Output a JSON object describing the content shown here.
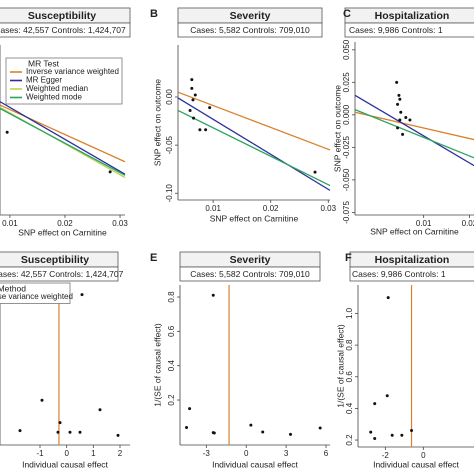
{
  "chart_data": [
    {
      "type": "scatter",
      "title": "Susceptibility",
      "subtitle": "Cases: 42,557 Controls: 1,424,707",
      "xlabel": "SNP effect on Carnitine",
      "xlim": [
        0.0082,
        0.0309
      ],
      "ylim": [
        -0.1,
        0.05
      ],
      "xticks": [
        0.01,
        0.02,
        0.03
      ],
      "points": {
        "x": [
          0.0095,
          0.0282
        ],
        "y": [
          -0.027,
          -0.062
        ]
      },
      "legend_title": "MR Test",
      "lines": [
        {
          "name": "Inverse variance weighted",
          "color": "#d9822b",
          "x": [
            0.0082,
            0.0309
          ],
          "y": [
            -0.003,
            -0.053
          ]
        },
        {
          "name": "MR Egger",
          "color": "#2b2f9c",
          "x": [
            0.0082,
            0.0309
          ],
          "y": [
            0.0,
            -0.064
          ]
        },
        {
          "name": "Weighted median",
          "color": "#b8d44a",
          "x": [
            0.0082,
            0.0309
          ],
          "y": [
            -0.005,
            -0.067
          ]
        },
        {
          "name": "Weighted mode",
          "color": "#2ca25f",
          "x": [
            0.0082,
            0.0309
          ],
          "y": [
            -0.006,
            -0.065
          ]
        }
      ]
    },
    {
      "type": "scatter",
      "panel": "B",
      "title": "Severity",
      "subtitle": "Cases: 5,582 Controls: 709,010",
      "xlabel": "SNP effect on Carnitine",
      "ylabel": "SNP effect on outcome",
      "xlim": [
        0.0039,
        0.0303
      ],
      "ylim": [
        -0.107,
        0.054
      ],
      "xticks": [
        0.01,
        0.02,
        0.03
      ],
      "yticks": [
        {
          "value": 0,
          "label": "0.00"
        },
        -0.05,
        {
          "value": -0.1,
          "label": "-0.10"
        }
      ],
      "points": {
        "x": [
          0.0063,
          0.0063,
          0.0065,
          0.006,
          0.0066,
          0.0069,
          0.0094,
          0.0087,
          0.0077,
          0.0277
        ],
        "y": [
          0.018,
          0.009,
          -0.003,
          -0.014,
          -0.022,
          0.002,
          -0.011,
          -0.034,
          -0.034,
          -0.078
        ]
      },
      "lines": [
        {
          "color": "#d9822b",
          "x": [
            0.0039,
            0.0303
          ],
          "y": [
            0.005,
            -0.055
          ]
        },
        {
          "color": "#2b2f9c",
          "x": [
            0.0039,
            0.0303
          ],
          "y": [
            -0.001,
            -0.097
          ]
        },
        {
          "color": "#2ca25f",
          "x": [
            0.0039,
            0.0303
          ],
          "y": [
            -0.014,
            -0.092
          ]
        }
      ]
    },
    {
      "type": "scatter",
      "panel": "C",
      "title": "Hospitalization",
      "subtitle": "Cases: 9,986 Controls: 1",
      "xlabel": "SNP effect on Carnitine",
      "ylabel": "SNP effect on outcome",
      "xlim": [
        -0.005,
        0.021
      ],
      "ylim": [
        -0.077,
        0.056
      ],
      "xticks": [
        0.01,
        0.02
      ],
      "yticks": [
        {
          "value": 0.05,
          "label": "0.050"
        },
        0.025,
        {
          "value": 0,
          "label": "0.000"
        },
        -0.025,
        {
          "value": -0.05,
          "label": "-0.050"
        },
        -0.075
      ],
      "points": {
        "x": [
          0.0041,
          0.0046,
          0.0043,
          0.005,
          0.0048,
          0.0043,
          0.0054,
          0.0048,
          0.007,
          0.0061
        ],
        "y": [
          0.025,
          0.015,
          0.008,
          0.002,
          -0.004,
          -0.01,
          -0.015,
          0.012,
          -0.004,
          -0.002
        ]
      },
      "lines": [
        {
          "color": "#d9822b",
          "x": [
            -0.005,
            0.021
          ],
          "y": [
            0.002,
            -0.019
          ]
        },
        {
          "color": "#2b2f9c",
          "x": [
            -0.005,
            0.021
          ],
          "y": [
            0.015,
            -0.039
          ]
        },
        {
          "color": "#2ca25f",
          "x": [
            -0.005,
            0.021
          ],
          "y": [
            0.004,
            -0.033
          ]
        }
      ]
    },
    {
      "type": "funnel",
      "title": "Susceptibility",
      "subtitle": "Cases: 42,557 Controls: 1,424,707",
      "xlabel": "Individual causal effect",
      "xlim": [
        -2.5,
        2.375
      ],
      "ylim": [
        0,
        1
      ],
      "xticks": [
        -1,
        0,
        1,
        2
      ],
      "points": {
        "x": [
          0.575,
          -0.925,
          -1.75,
          -0.25,
          -0.325,
          0.125,
          0.5,
          1.25,
          1.925
        ],
        "y": [
          0.94,
          0.28,
          0.09,
          0.14,
          0.08,
          0.08,
          0.08,
          0.22,
          0.06
        ]
      },
      "legend_title": "MR Method",
      "estimate": {
        "name": "Inverse variance weighted",
        "color": "#d9822b",
        "value": -0.29
      }
    },
    {
      "type": "funnel",
      "panel": "E",
      "title": "Severity",
      "subtitle": "Cases: 5,582 Controls: 709,010",
      "xlabel": "Individual causal effect",
      "ylabel": "1/(SE of causal effect)",
      "xlim": [
        -4.98,
        6.3
      ],
      "ylim": [
        -0.062,
        0.87
      ],
      "xticks": [
        -3,
        0,
        3,
        6
      ],
      "yticks": [
        0.2,
        0.4,
        0.6,
        0.8
      ],
      "points": {
        "x": [
          -2.48,
          -4.26,
          -4.49,
          -2.48,
          -2.4,
          0.35,
          1.24,
          3.33,
          5.56
        ],
        "y": [
          0.81,
          0.15,
          0.04,
          0.01,
          0.008,
          0.054,
          0.014,
          0,
          0.037
        ]
      },
      "estimate": {
        "color": "#d9822b",
        "value": -1.29
      }
    },
    {
      "type": "funnel",
      "panel": "F",
      "title": "Hospitalization",
      "subtitle": "Cases: 9,986 Controls: 1",
      "xlabel": "Individual causal effect",
      "ylabel": "1/(SE of causal effect)",
      "xlim": [
        -3.44,
        2.67
      ],
      "ylim": [
        0.156,
        1.18
      ],
      "xticks": [
        -2,
        0
      ],
      "yticks": [
        0.2,
        0.4,
        0.6,
        0.8,
        {
          "value": 1,
          "label": "1.0"
        }
      ],
      "points": {
        "x": [
          -1.85,
          -2.56,
          -1.9,
          -2.77,
          -2.56,
          -1.64,
          -1.13,
          -0.62
        ],
        "y": [
          1.1,
          0.43,
          0.48,
          0.25,
          0.21,
          0.23,
          0.23,
          0.26
        ]
      },
      "estimate": {
        "color": "#d9822b",
        "value": -0.62
      }
    }
  ]
}
